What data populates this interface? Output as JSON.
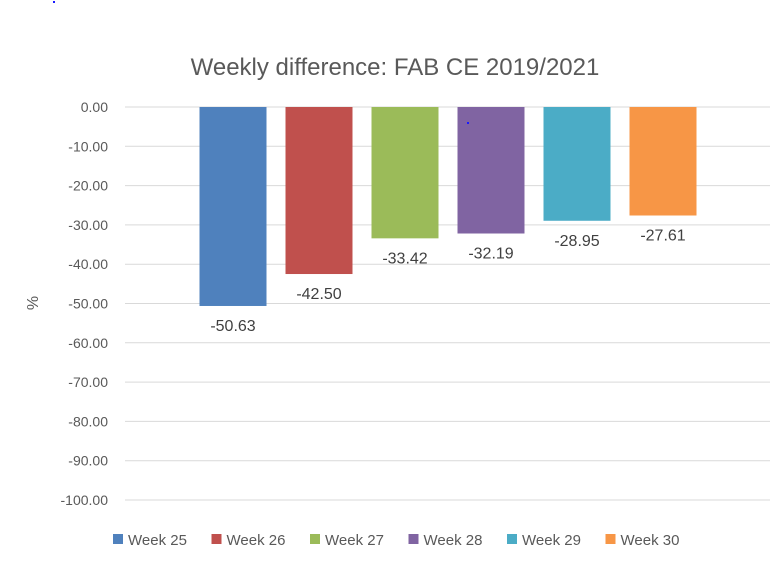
{
  "chart_data": {
    "type": "bar",
    "title": "Weekly difference: FAB CE 2019/2021",
    "ylabel": "%",
    "xlabel": "",
    "ylim": [
      -100,
      0
    ],
    "ytick_step": 10,
    "ytick_labels": [
      "0.00",
      "-10.00",
      "-20.00",
      "-30.00",
      "-40.00",
      "-50.00",
      "-60.00",
      "-70.00",
      "-80.00",
      "-90.00",
      "-100.00"
    ],
    "grid": true,
    "legend_position": "bottom",
    "series": [
      {
        "name": "Week 25",
        "value": -50.63,
        "label": "-50.63",
        "color": "#4F81BD"
      },
      {
        "name": "Week 26",
        "value": -42.5,
        "label": "-42.50",
        "color": "#C0504D"
      },
      {
        "name": "Week 27",
        "value": -33.42,
        "label": "-33.42",
        "color": "#9BBB59"
      },
      {
        "name": "Week 28",
        "value": -32.19,
        "label": "-32.19",
        "color": "#8064A2"
      },
      {
        "name": "Week 29",
        "value": -28.95,
        "label": "-28.95",
        "color": "#4BACC6"
      },
      {
        "name": "Week 30",
        "value": -27.61,
        "label": "-27.61",
        "color": "#F79646"
      }
    ]
  }
}
